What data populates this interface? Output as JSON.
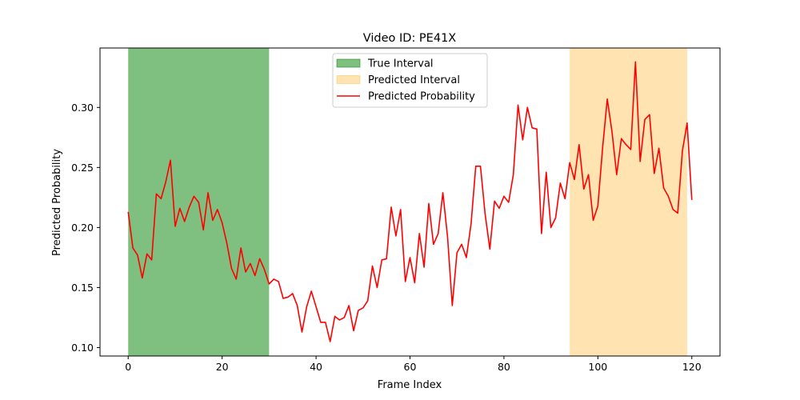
{
  "chart_data": {
    "type": "line",
    "title": "Video ID: PE41X",
    "xlabel": "Frame Index",
    "ylabel": "Predicted Probability",
    "xlim": [
      -6,
      126
    ],
    "ylim": [
      0.093,
      0.3495
    ],
    "x_ticks": [
      0,
      20,
      40,
      60,
      80,
      100,
      120
    ],
    "y_ticks": [
      0.1,
      0.15,
      0.2,
      0.25,
      0.3
    ],
    "x_tick_labels": [
      "0",
      "20",
      "40",
      "60",
      "80",
      "100",
      "120"
    ],
    "y_tick_labels": [
      "0.10",
      "0.15",
      "0.20",
      "0.25",
      "0.30"
    ],
    "grid": false,
    "legend_position": "top-center",
    "intervals": [
      {
        "name": "True Interval",
        "start": 0,
        "end": 30,
        "color": "#008000",
        "opacity": 0.5
      },
      {
        "name": "Predicted Interval",
        "start": 94,
        "end": 119,
        "color": "#ffa500",
        "opacity": 0.3
      }
    ],
    "series": [
      {
        "name": "Predicted Probability",
        "color": "#ff0000",
        "x": [
          0,
          1,
          2,
          3,
          4,
          5,
          6,
          7,
          8,
          9,
          10,
          11,
          12,
          13,
          14,
          15,
          16,
          17,
          18,
          19,
          20,
          21,
          22,
          23,
          24,
          25,
          26,
          27,
          28,
          29,
          30,
          31,
          32,
          33,
          34,
          35,
          36,
          37,
          38,
          39,
          40,
          41,
          42,
          43,
          44,
          45,
          46,
          47,
          48,
          49,
          50,
          51,
          52,
          53,
          54,
          55,
          56,
          57,
          58,
          59,
          60,
          61,
          62,
          63,
          64,
          65,
          66,
          67,
          68,
          69,
          70,
          71,
          72,
          73,
          74,
          75,
          76,
          77,
          78,
          79,
          80,
          81,
          82,
          83,
          84,
          85,
          86,
          87,
          88,
          89,
          90,
          91,
          92,
          93,
          94,
          95,
          96,
          97,
          98,
          99,
          100,
          101,
          102,
          103,
          104,
          105,
          106,
          107,
          108,
          109,
          110,
          111,
          112,
          113,
          114,
          115,
          116,
          117,
          118,
          119,
          120
        ],
        "values": [
          0.213,
          0.183,
          0.177,
          0.158,
          0.178,
          0.173,
          0.228,
          0.224,
          0.238,
          0.256,
          0.201,
          0.216,
          0.205,
          0.217,
          0.226,
          0.221,
          0.198,
          0.229,
          0.206,
          0.215,
          0.204,
          0.187,
          0.166,
          0.157,
          0.183,
          0.163,
          0.17,
          0.16,
          0.174,
          0.165,
          0.153,
          0.157,
          0.155,
          0.141,
          0.142,
          0.145,
          0.135,
          0.113,
          0.134,
          0.147,
          0.134,
          0.121,
          0.121,
          0.105,
          0.126,
          0.123,
          0.125,
          0.135,
          0.114,
          0.131,
          0.133,
          0.139,
          0.168,
          0.15,
          0.173,
          0.174,
          0.217,
          0.193,
          0.215,
          0.155,
          0.175,
          0.154,
          0.195,
          0.167,
          0.22,
          0.186,
          0.195,
          0.229,
          0.192,
          0.135,
          0.179,
          0.186,
          0.175,
          0.203,
          0.251,
          0.251,
          0.211,
          0.182,
          0.222,
          0.216,
          0.226,
          0.221,
          0.244,
          0.302,
          0.273,
          0.3,
          0.283,
          0.282,
          0.195,
          0.246,
          0.2,
          0.208,
          0.237,
          0.224,
          0.254,
          0.24,
          0.269,
          0.232,
          0.244,
          0.206,
          0.218,
          0.266,
          0.307,
          0.28,
          0.244,
          0.274,
          0.269,
          0.265,
          0.338,
          0.255,
          0.29,
          0.294,
          0.245,
          0.266,
          0.233,
          0.226,
          0.215,
          0.212,
          0.264,
          0.287,
          0.223
        ]
      }
    ]
  }
}
